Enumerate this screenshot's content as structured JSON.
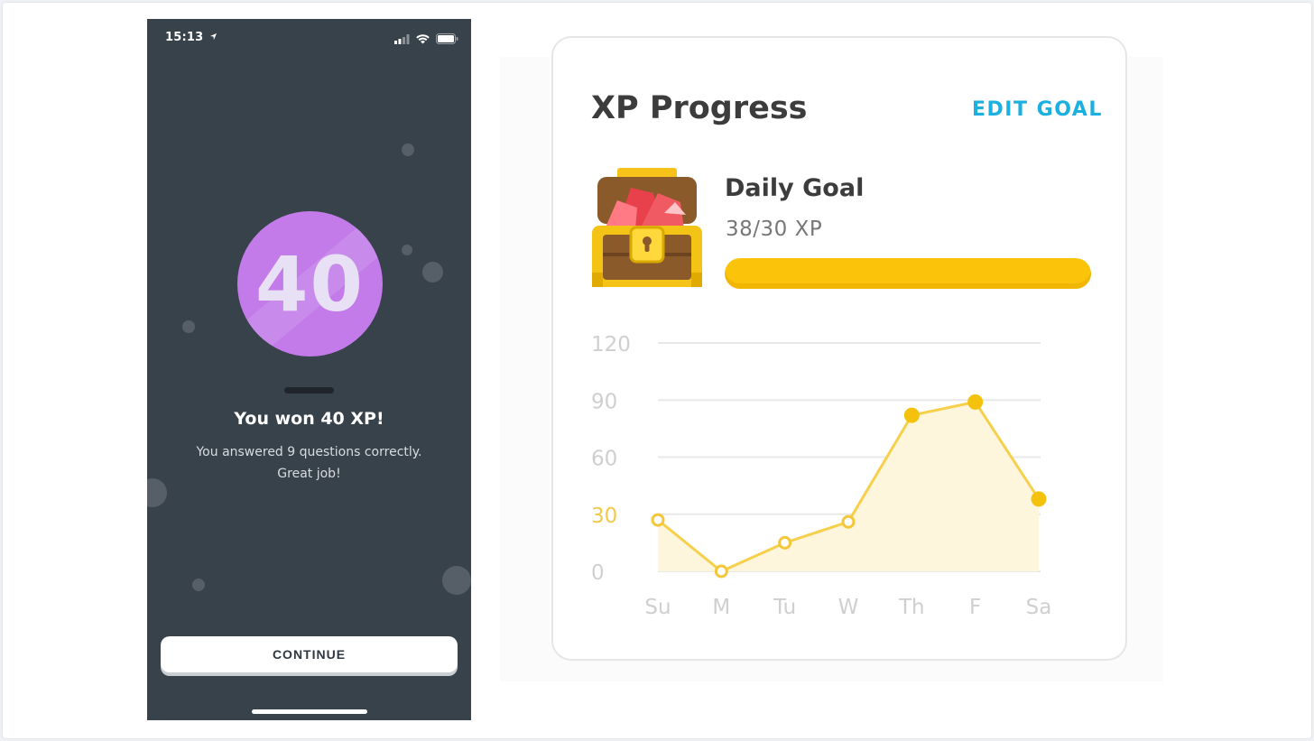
{
  "phone": {
    "status_time": "15:13",
    "xp_number": "40",
    "title": "You won 40 XP!",
    "subtitle_line1": "You answered 9 questions correctly.",
    "subtitle_line2": "Great job!",
    "continue_label": "CONTINUE",
    "circle_color": "#c27be9",
    "background_color": "#38424b"
  },
  "card": {
    "title": "XP Progress",
    "edit_goal_label": "EDIT GOAL",
    "goal_title": "Daily Goal",
    "goal_value": "38/30 XP",
    "goal_progress": 1.0,
    "accent_color": "#1cb0e0",
    "bar_color": "#fbc40a"
  },
  "chart_data": {
    "type": "area",
    "x": [
      "Su",
      "M",
      "Tu",
      "W",
      "Th",
      "F",
      "Sa"
    ],
    "series": [
      {
        "values": [
          27,
          0,
          15,
          26,
          82,
          89,
          38
        ]
      }
    ],
    "y_ticks": [
      "120",
      "90",
      "60",
      "30",
      "0"
    ],
    "ylim": [
      0,
      120
    ],
    "highlight_tick": "30",
    "grid": true,
    "line_color": "#f6d04d",
    "fill_color": "#fdf6dc",
    "point_style": [
      "hollow",
      "hollow",
      "hollow",
      "hollow",
      "filled",
      "filled",
      "filled"
    ]
  }
}
